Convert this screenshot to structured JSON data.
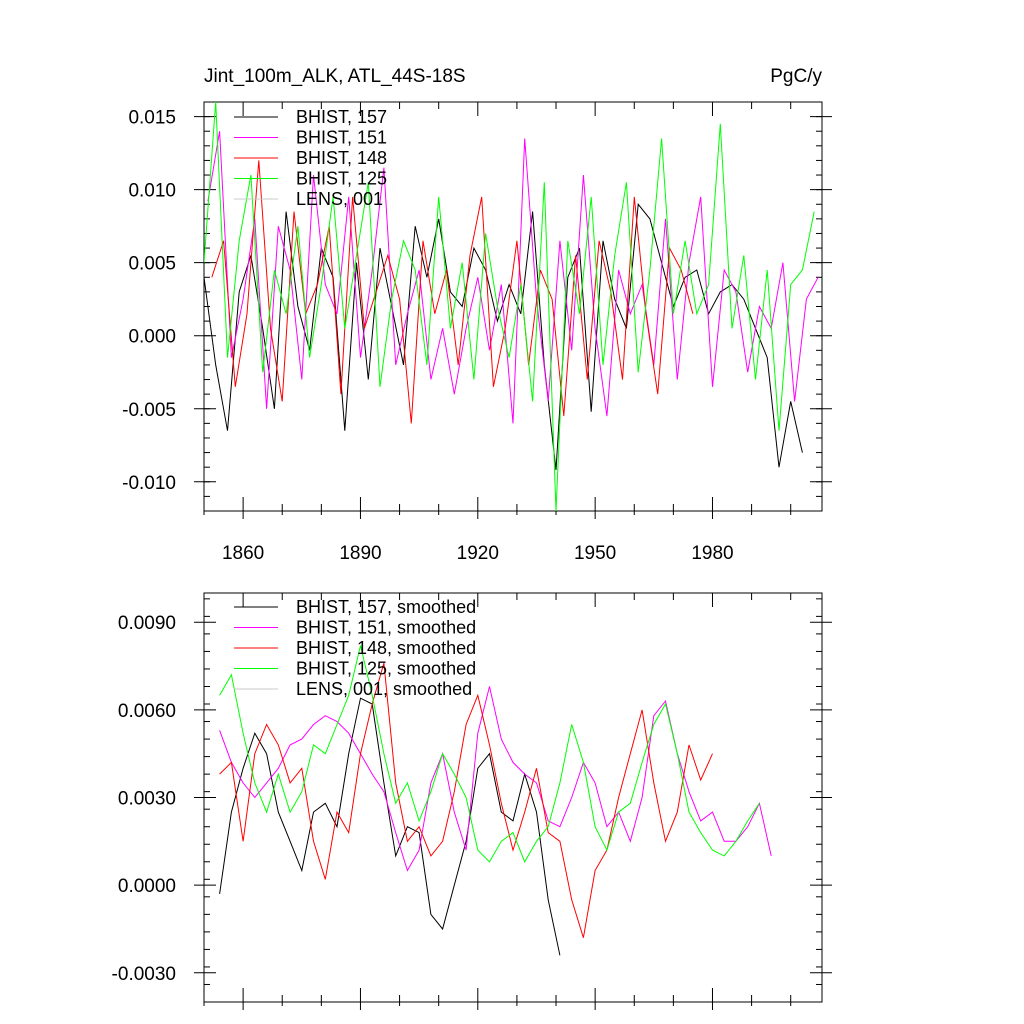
{
  "chart_data": [
    {
      "type": "line",
      "title": "Jint_100m_ALK, ATL_44S-18S",
      "units": "PgC/y",
      "xlim": [
        1850,
        2008
      ],
      "ylim": [
        -0.012,
        0.016
      ],
      "x_ticks": [
        1860,
        1890,
        1920,
        1950,
        1980
      ],
      "y_ticks": [
        -0.01,
        -0.005,
        0.0,
        0.005,
        0.01,
        0.015
      ],
      "y_tick_labels": [
        "-0.010",
        "-0.005",
        "0.000",
        "0.005",
        "0.010",
        "0.015"
      ],
      "x_tick_labels": [
        "1860",
        "1890",
        "1920",
        "1950",
        "1980"
      ],
      "legend": "top-left",
      "series": [
        {
          "name": "BHIST, 157",
          "color": "#000000",
          "x_start": 1850,
          "x_step": 3,
          "values": [
            0.004,
            -0.002,
            -0.0065,
            0.003,
            0.0055,
            0.0005,
            -0.005,
            0.0085,
            0.002,
            -0.001,
            0.006,
            0.004,
            -0.0065,
            0.005,
            -0.003,
            0.006,
            0.002,
            -0.002,
            0.0075,
            0.004,
            0.008,
            0.003,
            0.002,
            0.006,
            0.0045,
            0.001,
            0.0035,
            0.0015,
            0.0085,
            -0.002,
            -0.0092,
            0.004,
            0.006,
            -0.0052,
            0.0065,
            0.0025,
            0.0005,
            0.009,
            0.008,
            0.005,
            0.002,
            0.004,
            0.0045,
            0.0015,
            0.003,
            0.0035,
            0.0025,
            0.0005,
            -0.0015,
            -0.009,
            -0.0045,
            -0.008
          ]
        },
        {
          "name": "BHIST, 151",
          "color": "#ff00ff",
          "x_start": 1851,
          "x_step": 3,
          "values": [
            0.0092,
            0.014,
            -0.0015,
            0.0025,
            0.008,
            -0.005,
            0.0075,
            0.0045,
            -0.003,
            0.011,
            0.0035,
            0.0015,
            0.0095,
            -0.0015,
            0.0045,
            0.0115,
            -0.002,
            0.0015,
            0.0045,
            -0.003,
            0.0005,
            -0.004,
            0.0005,
            0.004,
            -0.001,
            0.0035,
            -0.006,
            0.0135,
            0.0025,
            -0.0045,
            0.0065,
            -0.001,
            0.011,
            0.0005,
            -0.0055,
            0.0045,
            0.0015,
            0.0035,
            -0.002,
            0.008,
            -0.003,
            0.005,
            0.0095,
            -0.0035,
            0.0045,
            0.003,
            -0.0025,
            0.002,
            0.0005,
            0.005,
            -0.0045,
            0.0025,
            0.004
          ]
        },
        {
          "name": "BHIST, 148",
          "color": "#ff0000",
          "x_start": 1852,
          "x_step": 3,
          "values": [
            0.004,
            0.0065,
            -0.0035,
            0.0015,
            0.012,
            0.0005,
            -0.0045,
            0.0085,
            0.0015,
            0.0035,
            0.0075,
            -0.004,
            0.0095,
            0.0005,
            0.003,
            0.0055,
            0.0025,
            -0.006,
            0.0065,
            0.0015,
            0.0045,
            -0.002,
            0.0055,
            0.0095,
            -0.0035,
            0.0005,
            0.0065,
            -0.002,
            0.0045,
            0.0025,
            -0.0055,
            0.0055,
            -0.003,
            0.0065,
            0.003,
            -0.003,
            0.0095,
            0.0015,
            -0.004,
            0.006,
            0.0045,
            0.0015
          ]
        },
        {
          "name": "BHIST, 125",
          "color": "#00ff00",
          "x_start": 1850,
          "x_step": 3,
          "values": [
            0.005,
            0.016,
            -0.0015,
            0.0065,
            0.011,
            -0.0025,
            0.0045,
            0.0015,
            0.0075,
            -0.0015,
            0.0035,
            0.0095,
            0.0005,
            0.0055,
            0.0105,
            -0.0035,
            0.0025,
            0.0065,
            0.0045,
            -0.002,
            0.0095,
            0.0005,
            0.005,
            -0.003,
            0.007,
            0.002,
            -0.0015,
            0.0035,
            -0.0045,
            0.0105,
            -0.012,
            0.0065,
            0.0015,
            0.0095,
            -0.002,
            0.0055,
            0.0105,
            -0.0025,
            0.0045,
            0.0135,
            0.0015,
            0.0065,
            0.0015,
            0.0035,
            0.0145,
            0.0005,
            0.0055,
            -0.003,
            0.0045,
            -0.0065,
            0.0035,
            0.0045,
            0.0085
          ]
        },
        {
          "name": "LENS, 001",
          "color": "#c8c8c8",
          "x_start": 1850,
          "x_step": 3,
          "values": []
        }
      ]
    },
    {
      "type": "line",
      "xlim": [
        1850,
        2008
      ],
      "ylim": [
        -0.004,
        0.01
      ],
      "x_ticks": [
        1860,
        1890,
        1920,
        1950,
        1980
      ],
      "y_ticks": [
        -0.003,
        0.0,
        0.003,
        0.006,
        0.009
      ],
      "y_tick_labels": [
        "-0.0030",
        "0.0000",
        "0.0030",
        "0.0060",
        "0.0090"
      ],
      "legend": "top-left",
      "series": [
        {
          "name": "BHIST, 157, smoothed",
          "color": "#000000",
          "x_start": 1854,
          "x_step": 3,
          "values": [
            -0.0003,
            0.0025,
            0.004,
            0.0052,
            0.0045,
            0.0025,
            0.0015,
            0.0005,
            0.0025,
            0.0028,
            0.002,
            0.0045,
            0.0064,
            0.0062,
            0.0035,
            0.001,
            0.002,
            0.0018,
            -0.001,
            -0.0015,
            0.0,
            0.0015,
            0.004,
            0.0045,
            0.0025,
            0.0022,
            0.0038,
            0.0025,
            -0.0005,
            -0.0024
          ]
        },
        {
          "name": "BHIST, 151, smoothed",
          "color": "#ff00ff",
          "x_start": 1854,
          "x_step": 3,
          "values": [
            0.0053,
            0.0042,
            0.0035,
            0.003,
            0.0035,
            0.004,
            0.0048,
            0.005,
            0.0055,
            0.0058,
            0.0056,
            0.0052,
            0.0045,
            0.0038,
            0.0032,
            0.0018,
            0.0005,
            0.0012,
            0.0035,
            0.0045,
            0.0025,
            0.0012,
            0.0052,
            0.0068,
            0.005,
            0.0042,
            0.0038,
            0.0035,
            0.0022,
            0.002,
            0.003,
            0.0042,
            0.0035,
            0.002,
            0.0025,
            0.0015,
            0.003,
            0.0058,
            0.0063,
            0.0045,
            0.0032,
            0.0022,
            0.0025,
            0.0015,
            0.0015,
            0.002,
            0.0028,
            0.001
          ]
        },
        {
          "name": "BHIST, 148, smoothed",
          "color": "#ff0000",
          "x_start": 1854,
          "x_step": 3,
          "values": [
            0.0038,
            0.0042,
            0.0015,
            0.0045,
            0.0055,
            0.0048,
            0.0035,
            0.004,
            0.0015,
            0.0002,
            0.0025,
            0.0018,
            0.0045,
            0.0062,
            0.0076,
            0.0035,
            0.0015,
            0.002,
            0.001,
            0.0015,
            0.0032,
            0.0055,
            0.0065,
            0.0048,
            0.0028,
            0.0012,
            0.0025,
            0.004,
            0.0018,
            0.0015,
            -0.0005,
            -0.0018,
            0.0005,
            0.0012,
            0.003,
            0.0045,
            0.006,
            0.0035,
            0.0015,
            0.0025,
            0.0048,
            0.0036,
            0.0045
          ]
        },
        {
          "name": "BHIST, 125, smoothed",
          "color": "#00ff00",
          "x_start": 1854,
          "x_step": 3,
          "values": [
            0.0065,
            0.0072,
            0.0052,
            0.0035,
            0.0025,
            0.0038,
            0.0025,
            0.0032,
            0.0048,
            0.0045,
            0.0055,
            0.0065,
            0.0082,
            0.0065,
            0.0045,
            0.0028,
            0.0035,
            0.0022,
            0.0032,
            0.0045,
            0.0038,
            0.003,
            0.0012,
            0.0008,
            0.0015,
            0.0018,
            0.0008,
            0.0015,
            0.002,
            0.0035,
            0.0055,
            0.0042,
            0.002,
            0.0012,
            0.0025,
            0.0028,
            0.0042,
            0.0055,
            0.0062,
            0.0045,
            0.0025,
            0.0018,
            0.0012,
            0.001,
            0.0015,
            0.0022,
            0.0028
          ]
        },
        {
          "name": "LENS, 001, smoothed",
          "color": "#c8c8c8",
          "x_start": 1854,
          "x_step": 3,
          "values": []
        }
      ]
    }
  ]
}
